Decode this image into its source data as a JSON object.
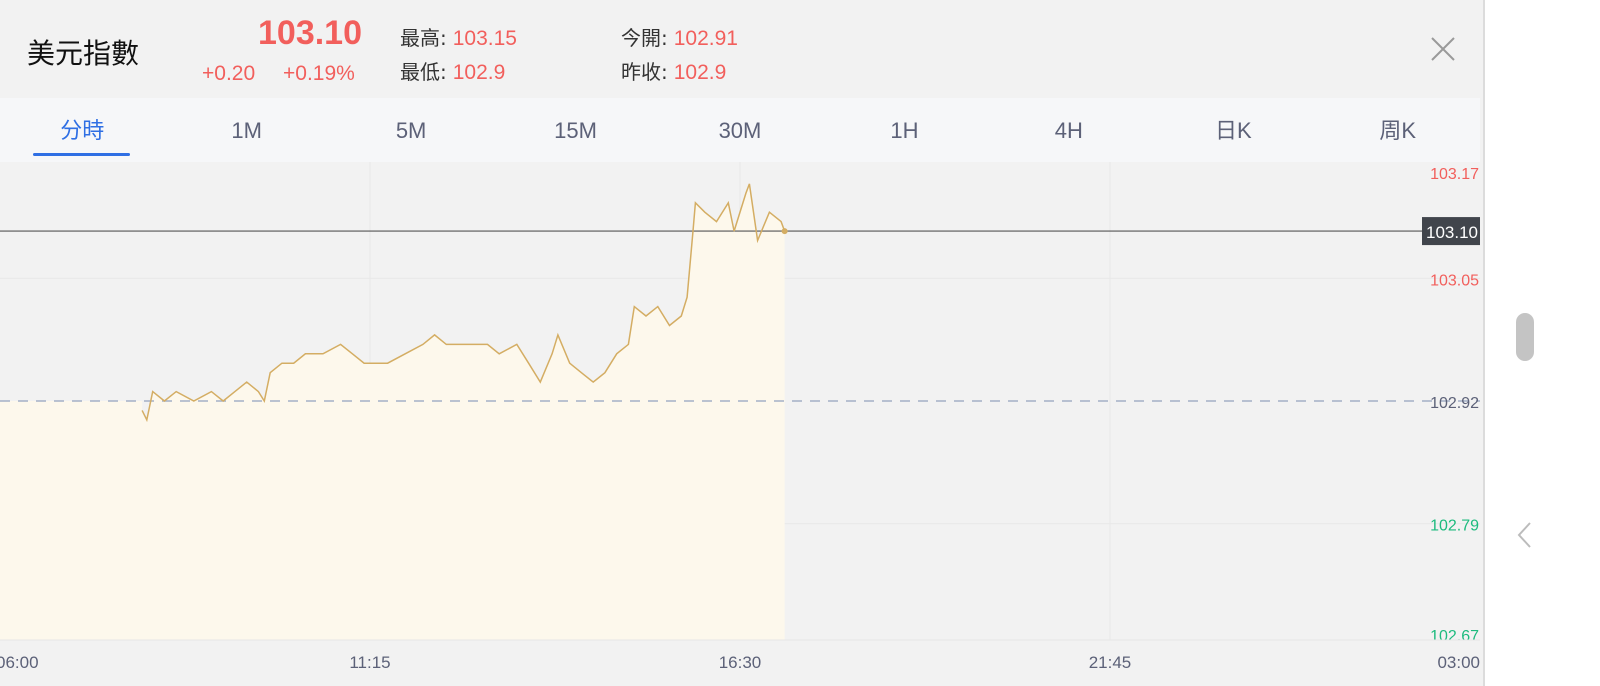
{
  "header": {
    "title": "美元指數",
    "price": "103.10",
    "change": "+0.20",
    "change_pct": "+0.19%",
    "high_label": "最高:",
    "high": "103.15",
    "low_label": "最低:",
    "low": "102.9",
    "open_label": "今開:",
    "open": "102.91",
    "prev_close_label": "昨收:",
    "prev_close": "102.9",
    "close_icon": "close-icon"
  },
  "tabs": [
    {
      "label": "分時",
      "active": true
    },
    {
      "label": "1M"
    },
    {
      "label": "5M"
    },
    {
      "label": "15M"
    },
    {
      "label": "30M"
    },
    {
      "label": "1H"
    },
    {
      "label": "4H"
    },
    {
      "label": "日K"
    },
    {
      "label": "周K"
    }
  ],
  "colors": {
    "up": "#f25f5c",
    "down": "#1dbb7e",
    "line": "#d4ad63",
    "fill": "#fdf8ec",
    "accent": "#2f6fe4",
    "neutral": "#5c6178"
  },
  "chart_data": {
    "type": "line",
    "xlabel": "",
    "ylabel": "",
    "x_ticks": [
      "06:00",
      "11:15",
      "16:30",
      "21:45",
      "03:00"
    ],
    "xlim": [
      "06:00",
      "03:00"
    ],
    "ylim": [
      102.67,
      103.17
    ],
    "y_ticks": [
      {
        "value": 103.17,
        "label": "103.17",
        "color": "up"
      },
      {
        "value": 103.05,
        "label": "103.05",
        "color": "up"
      },
      {
        "value": 102.92,
        "label": "102.92",
        "color": "neutral"
      },
      {
        "value": 102.79,
        "label": "102.79",
        "color": "down"
      },
      {
        "value": 102.67,
        "label": "102.67",
        "color": "down"
      }
    ],
    "reference_line": {
      "value": 102.92,
      "style": "dashed"
    },
    "current_price": {
      "value": 103.1,
      "label": "103.10"
    },
    "grid": true,
    "series": [
      {
        "x": [
          "08:01",
          "08:05",
          "08:10",
          "08:20",
          "08:30",
          "08:45",
          "09:00",
          "09:10",
          "09:20",
          "09:30",
          "09:40",
          "09:45",
          "09:50",
          "10:00",
          "10:10",
          "10:20",
          "10:35",
          "10:50",
          "11:00",
          "11:10",
          "11:30",
          "11:45",
          "12:00",
          "12:10",
          "12:20",
          "12:40",
          "12:55",
          "13:05",
          "13:20",
          "13:30",
          "13:40",
          "13:50",
          "13:55",
          "14:05",
          "14:15",
          "14:25",
          "14:35",
          "14:45",
          "14:55",
          "15:00",
          "15:10",
          "15:20",
          "15:30",
          "15:40",
          "15:45",
          "15:50",
          "15:52",
          "16:00",
          "16:10",
          "16:20",
          "16:25",
          "16:35",
          "16:38",
          "16:45",
          "16:55",
          "17:05",
          "17:08"
        ],
        "y": [
          102.91,
          102.9,
          102.93,
          102.92,
          102.93,
          102.92,
          102.93,
          102.92,
          102.93,
          102.94,
          102.93,
          102.92,
          102.95,
          102.96,
          102.96,
          102.97,
          102.97,
          102.98,
          102.97,
          102.96,
          102.96,
          102.97,
          102.98,
          102.99,
          102.98,
          102.98,
          102.98,
          102.97,
          102.98,
          102.96,
          102.94,
          102.97,
          102.99,
          102.96,
          102.95,
          102.94,
          102.95,
          102.97,
          102.98,
          103.02,
          103.01,
          103.02,
          103.0,
          103.01,
          103.03,
          103.1,
          103.13,
          103.12,
          103.11,
          103.13,
          103.1,
          103.14,
          103.15,
          103.09,
          103.12,
          103.11,
          103.1
        ]
      }
    ]
  }
}
